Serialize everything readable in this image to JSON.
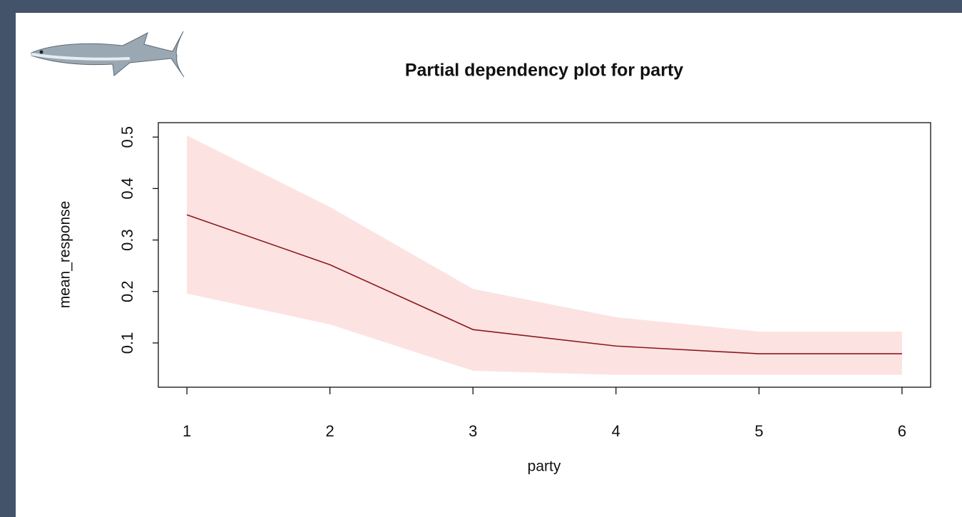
{
  "chart_data": {
    "type": "line",
    "title": "Partial dependency plot for party",
    "x_label": "party",
    "y_label": "mean_response",
    "x": [
      1,
      2,
      3,
      4,
      5,
      6
    ],
    "values": [
      0.349,
      0.252,
      0.126,
      0.094,
      0.079,
      0.079
    ],
    "lower": [
      0.196,
      0.136,
      0.046,
      0.038,
      0.038,
      0.038
    ],
    "upper": [
      0.503,
      0.364,
      0.205,
      0.15,
      0.122,
      0.122
    ],
    "color": "#8b1a1a",
    "band_color": "#fde2e2",
    "xlim": [
      0.8,
      6.2
    ],
    "xticks": [
      1,
      2,
      3,
      4,
      5,
      6
    ],
    "ylim": [
      0.014,
      0.528
    ],
    "yticks": [
      0.1,
      0.2,
      0.3,
      0.4,
      0.5
    ]
  }
}
